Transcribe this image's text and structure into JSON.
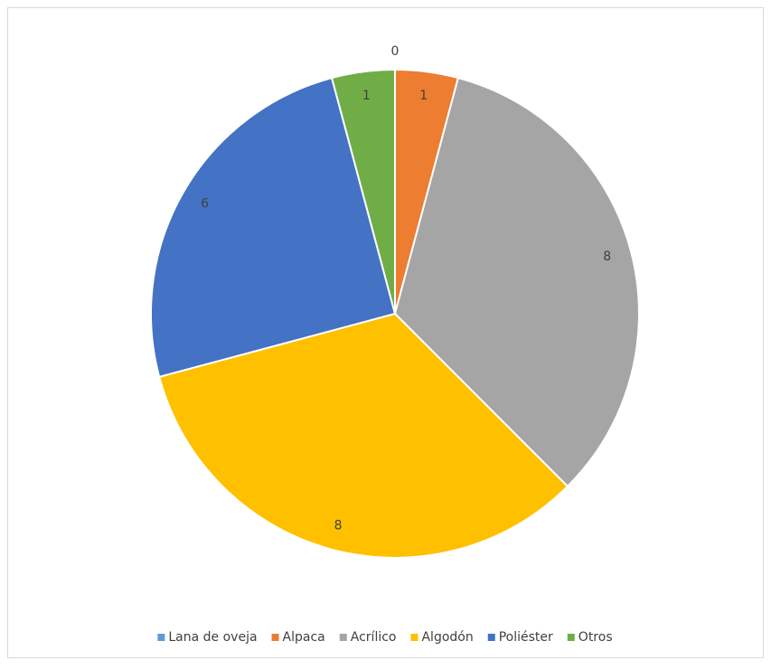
{
  "chart_data": {
    "type": "pie",
    "categories": [
      "Lana de oveja",
      "Alpaca",
      "Acrílico",
      "Algodón",
      "Poliéster",
      "Otros"
    ],
    "values": [
      0,
      1,
      8,
      8,
      6,
      1
    ],
    "colors": [
      "#5b9bd5",
      "#ed7d31",
      "#a5a5a5",
      "#ffc000",
      "#4472c4",
      "#70ad47"
    ],
    "legend": "bottom"
  }
}
